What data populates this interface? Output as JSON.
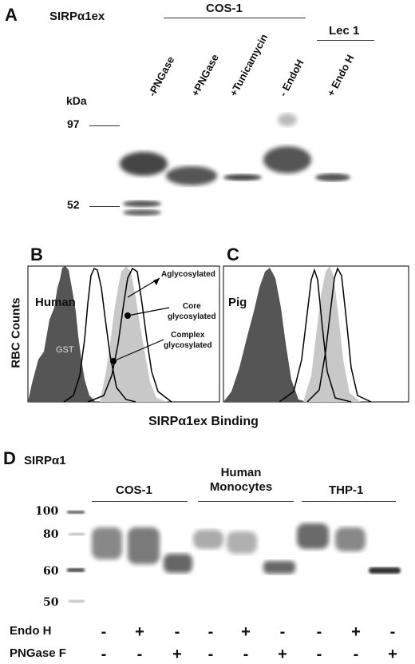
{
  "panel_a": {
    "letter": "A",
    "title": "SIRPα1ex",
    "group_cos": "COS-1",
    "group_lec": "Lec 1",
    "kda_label": "kDa",
    "markers": [
      "97",
      "52"
    ],
    "lanes": [
      "-PNGase",
      "+PNGase",
      "+Tunicamycin",
      "- EndoH",
      "+ Endo H"
    ]
  },
  "panel_b": {
    "letter": "B",
    "ylabel": "RBC Counts",
    "species": "Human",
    "gst": "GST",
    "ann_agly": "Aglycosylated",
    "ann_core": "Core\nglycosylated",
    "ann_complex": "Complex\nglycosylated"
  },
  "panel_c": {
    "letter": "C",
    "species": "Pig"
  },
  "xlabel_bc": "SIRPα1ex Binding",
  "panel_d": {
    "letter": "D",
    "title": "SIRPα1",
    "groups": [
      "COS-1",
      "Human\nMonocytes",
      "THP-1"
    ],
    "markers": [
      "100",
      "80",
      "60",
      "50"
    ],
    "row1_label": "Endo H",
    "row2_label": "PNGase F",
    "row1_signs": [
      "-",
      "+",
      "-",
      "-",
      "+",
      "-",
      "-",
      "+",
      "-"
    ],
    "row2_signs": [
      "-",
      "-",
      "+",
      "-",
      "-",
      "+",
      "-",
      "-",
      "+"
    ]
  },
  "colors": {
    "dark_fill": "#555555",
    "light_fill": "#c8c8c8"
  }
}
